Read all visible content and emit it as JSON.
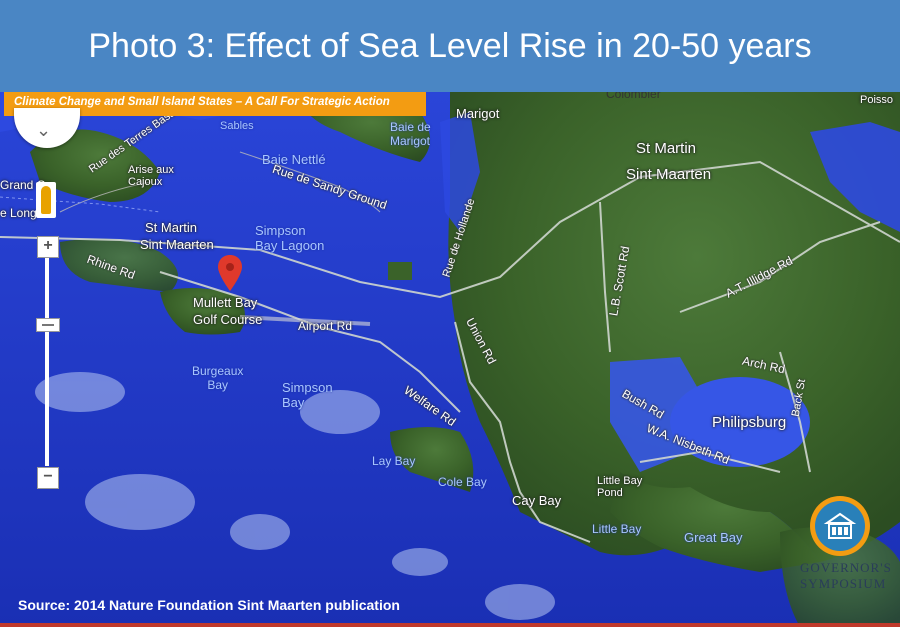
{
  "slide": {
    "title": "Photo 3: Effect of Sea Level Rise in 20-50 years",
    "subtitle": "Climate Change and Small Island States – A Call For Strategic Action",
    "source": "Source: 2014 Nature Foundation Sint Maarten publication",
    "colors": {
      "title_bar": "#4a86c4",
      "banner": "#f39c12",
      "flood_blue": "#2d49e0",
      "land_green": "#3d6b2e"
    }
  },
  "map": {
    "places": {
      "colombier": "Colombier",
      "marigot": "Marigot",
      "st_martin_1": "St Martin",
      "sint_maarten_1": "Sint Maarten",
      "st_martin_2": "St Martin",
      "sint_maarten_2": "Sint Maarten",
      "philipsburg": "Philipsburg",
      "mullet_bay": "Mullett Bay",
      "golf_course": "Golf Course",
      "burgeaux_bay": "Burgeaux\nBay",
      "simpson_bay": "Simpson\nBay",
      "simpson_bay_lagoon": "Simpson\nBay Lagoon",
      "lay_bay": "Lay Bay",
      "cole_bay": "Cole Bay",
      "cay_bay": "Cay Bay",
      "little_bay_pond": "Little Bay\nPond",
      "little_bay": "Little Bay",
      "great_bay": "Great Bay",
      "baie_nettle": "Baie Nettlé",
      "baie_de_marigot": "Baie de\nMarigot",
      "sables": "Sables",
      "grand_case": "Grand Ca",
      "baie_long": "e Long",
      "arise_aux_cajoux": "Arise aux\nCajoux",
      "poisson": "Poisso"
    },
    "roads": {
      "terres_basses": "Rue des Terres Basses",
      "sandy_ground": "Rue de Sandy Ground",
      "rue_de_hollande": "Rue de Hollande",
      "union_rd": "Union Rd",
      "lb_scott": "L.B. Scott Rd",
      "illidge": "A.T. Illidge Rd",
      "airport_rd": "Airport Rd",
      "welfare_rd": "Welfare Rd",
      "bush_rd": "Bush Rd",
      "nisbeth_rd": "W.A. Nisbeth Rd",
      "arch_rd": "Arch Rd",
      "rhine_rd": "Rhine Rd",
      "back_st": "Back St"
    },
    "logo": {
      "line1": "GOVERNOR'S",
      "line2": "SYMPOSIUM"
    },
    "controls": {
      "zoom_in": "+",
      "zoom_out": "−"
    }
  }
}
